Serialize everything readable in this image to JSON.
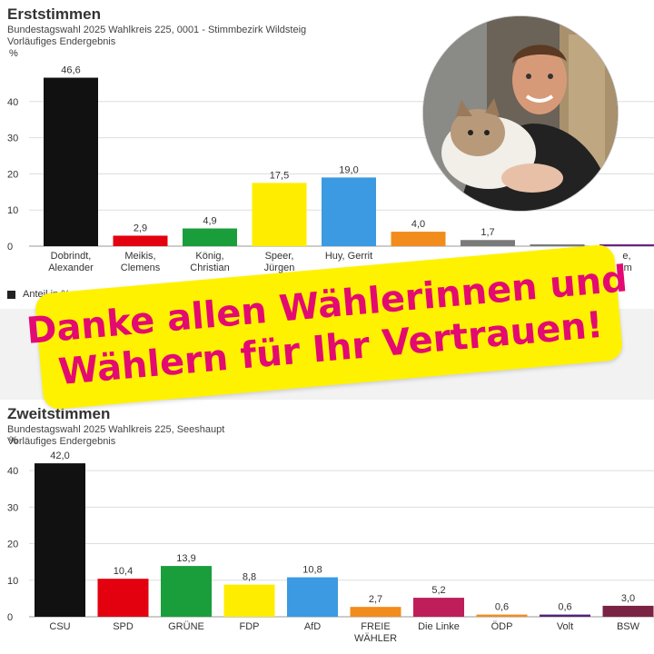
{
  "chart_data": [
    {
      "type": "bar",
      "title": "Erststimmen",
      "subtitle": "Bundestagswahl 2025 Wahlkreis 225, 0001 - Stimmbezirk Wildsteig",
      "note": "Vorläufiges Endergebnis",
      "ylabel": "%",
      "ylim": [
        0,
        50
      ],
      "yticks": [
        0,
        10,
        20,
        30,
        40
      ],
      "legend": "Anteil in %",
      "categories": [
        [
          "Dobrindt,",
          "Alexander"
        ],
        [
          "Meikis,",
          "Clemens"
        ],
        [
          "König,",
          "Christian"
        ],
        [
          "Speer,",
          "Jürgen"
        ],
        [
          "Huy, Gerrit",
          ""
        ],
        [
          "",
          ""
        ],
        [
          "",
          ""
        ],
        [
          "",
          ""
        ],
        [
          "e,",
          "im"
        ]
      ],
      "values": [
        46.6,
        2.9,
        4.9,
        17.5,
        19.0,
        4.0,
        1.7,
        0.5,
        0.5
      ],
      "value_labels": [
        "46,6",
        "2,9",
        "4,9",
        "17,5",
        "19,0",
        "4,0",
        "1,7",
        "",
        ""
      ],
      "colors": [
        "#111111",
        "#e3000f",
        "#1a9e3c",
        "#ffed00",
        "#3b9ae1",
        "#f28c1c",
        "#7a7a7a",
        "#7a7a7a",
        "#6d1f86"
      ]
    },
    {
      "type": "bar",
      "title": "Zweitstimmen",
      "subtitle": "Bundestagswahl 2025 Wahlkreis 225, Seeshaupt",
      "note": "Vorläufiges Endergebnis",
      "ylabel": "%",
      "ylim": [
        0,
        45
      ],
      "yticks": [
        0,
        10,
        20,
        30,
        40
      ],
      "categories": [
        [
          "CSU",
          ""
        ],
        [
          "SPD",
          ""
        ],
        [
          "GRÜNE",
          ""
        ],
        [
          "FDP",
          ""
        ],
        [
          "AfD",
          ""
        ],
        [
          "FREIE",
          "WÄHLER"
        ],
        [
          "Die Linke",
          ""
        ],
        [
          "ÖDP",
          ""
        ],
        [
          "Volt",
          ""
        ],
        [
          "BSW",
          ""
        ]
      ],
      "values": [
        42.0,
        10.4,
        13.9,
        8.8,
        10.8,
        2.7,
        5.2,
        0.6,
        0.6,
        3.0
      ],
      "value_labels": [
        "42,0",
        "10,4",
        "13,9",
        "8,8",
        "10,8",
        "2,7",
        "5,2",
        "0,6",
        "0,6",
        "3,0"
      ],
      "colors": [
        "#111111",
        "#e3000f",
        "#1a9e3c",
        "#ffed00",
        "#3b9ae1",
        "#f28c1c",
        "#be1e5a",
        "#f28c1c",
        "#502379",
        "#7b2344"
      ]
    }
  ],
  "banner": {
    "line1": "Danke allen Wählerinnen und",
    "line2": "Wählern für Ihr Vertrauen!",
    "bg": "#fff200",
    "text_color": "#e30a72"
  },
  "portrait": {
    "icon": "portrait-man-with-cat"
  }
}
